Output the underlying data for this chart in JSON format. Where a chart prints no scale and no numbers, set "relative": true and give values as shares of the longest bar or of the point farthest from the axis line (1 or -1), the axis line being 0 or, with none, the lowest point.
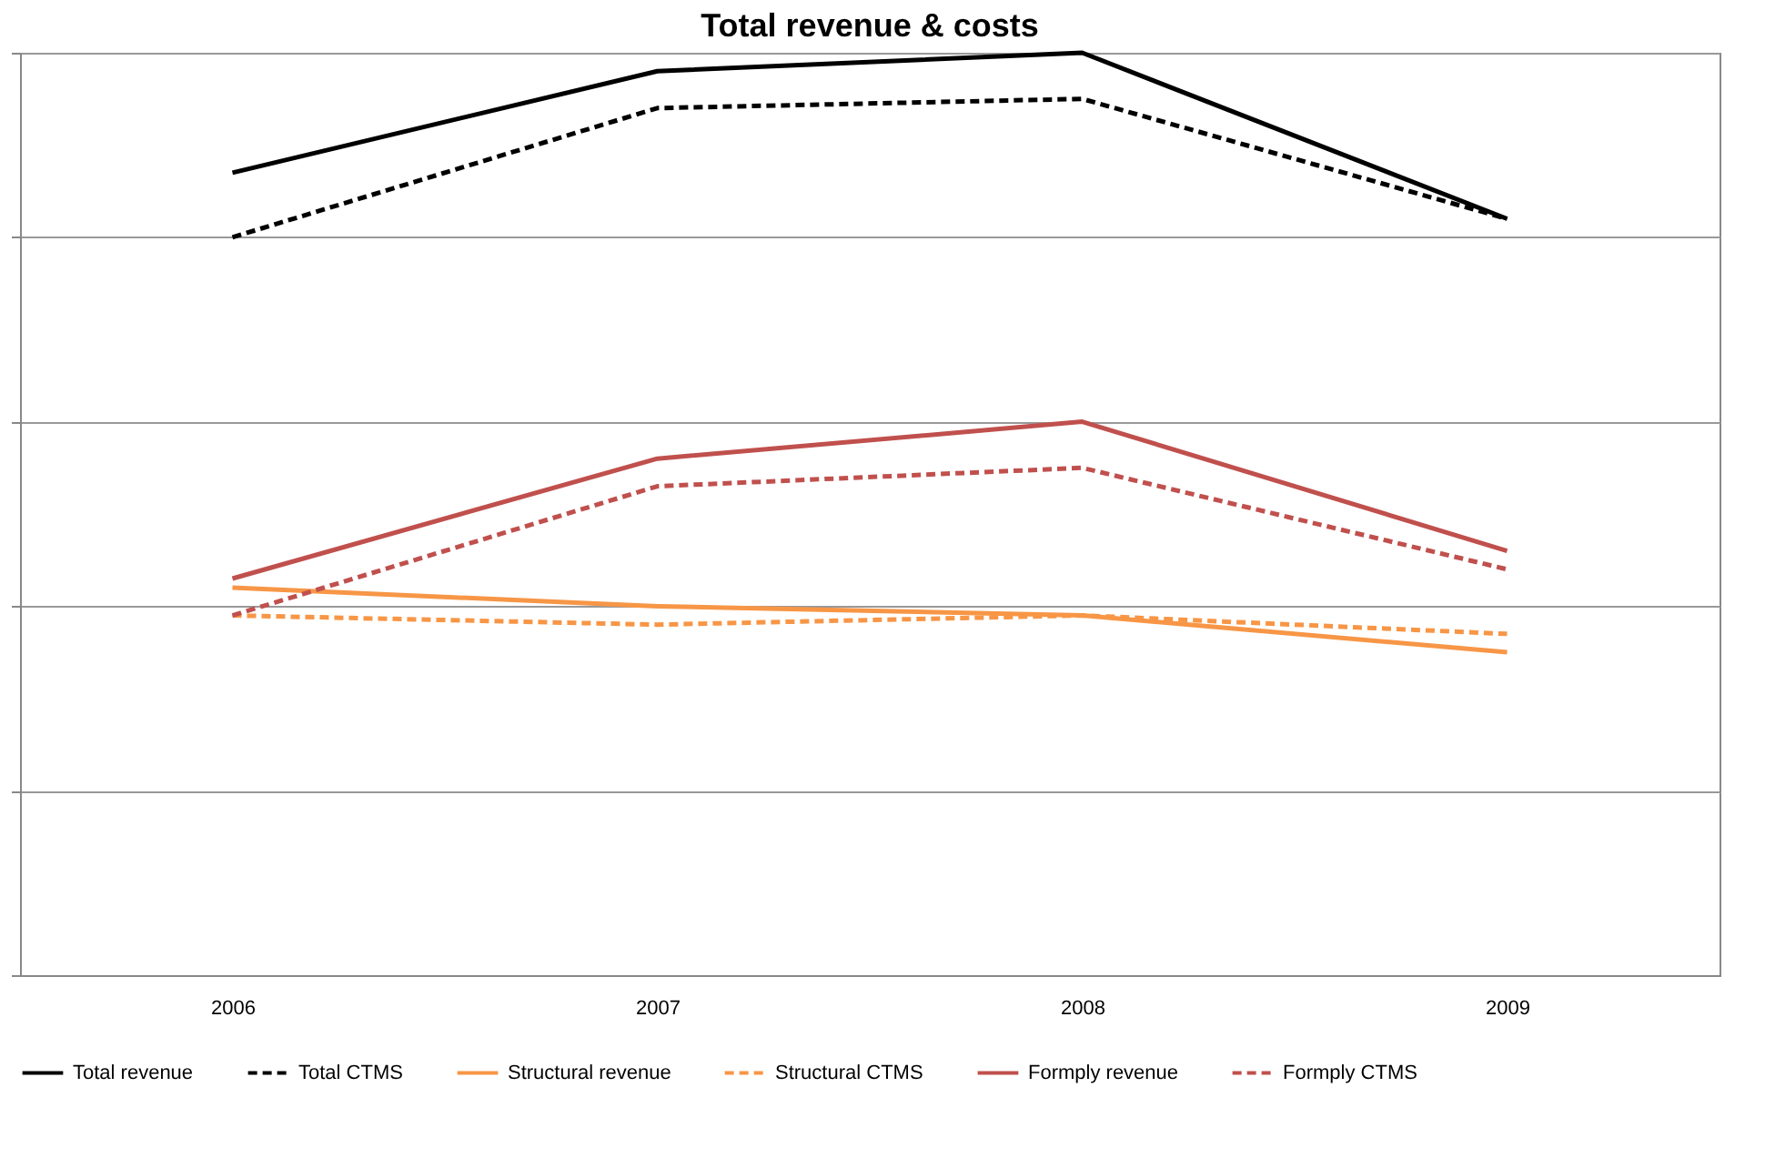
{
  "chart_data": {
    "type": "line",
    "title": "Total revenue & costs",
    "relative": true,
    "categories": [
      "2006",
      "2007",
      "2008",
      "2009"
    ],
    "series": [
      {
        "name": "Total revenue",
        "color": "#000000",
        "line_style": "solid",
        "values": [
          0.87,
          0.98,
          1,
          0.82
        ]
      },
      {
        "name": "Total CTMS",
        "color": "#000000",
        "line_style": "dashed",
        "values": [
          0.8,
          0.94,
          0.95,
          0.82
        ]
      },
      {
        "name": "Structural revenue",
        "color": "#f79646",
        "line_style": "solid",
        "values": [
          0.42,
          0.4,
          0.39,
          0.35
        ]
      },
      {
        "name": "Structural CTMS",
        "color": "#f79646",
        "line_style": "dashed",
        "values": [
          0.39,
          0.38,
          0.39,
          0.37
        ]
      },
      {
        "name": "Formply revenue",
        "color": "#c0504d",
        "line_style": "solid",
        "values": [
          0.43,
          0.56,
          0.6,
          0.46
        ]
      },
      {
        "name": "Formply CTMS",
        "color": "#c0504d",
        "line_style": "dashed",
        "values": [
          0.39,
          0.53,
          0.55,
          0.44
        ]
      }
    ],
    "grid": "y",
    "legend": "bottom",
    "marker": "none"
  }
}
